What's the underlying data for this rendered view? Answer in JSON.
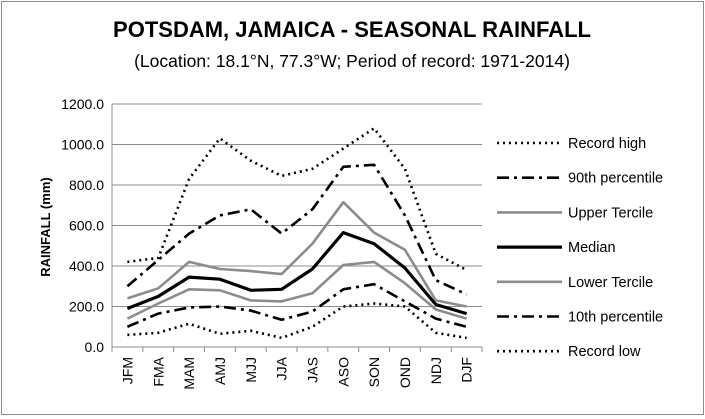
{
  "chart_data": {
    "type": "line",
    "title": "POTSDAM, JAMAICA - SEASONAL RAINFALL",
    "subtitle": "(Location: 18.1°N, 77.3°W; Period of record: 1971-2014)",
    "ylabel": "RAINFALL (mm)",
    "xlabel": "",
    "ylim": [
      0,
      1200
    ],
    "yticks": [
      "0.0",
      "200.0",
      "400.0",
      "600.0",
      "800.0",
      "1000.0",
      "1200.0"
    ],
    "categories": [
      "JFM",
      "FMA",
      "MAM",
      "AMJ",
      "MJJ",
      "JJA",
      "JAS",
      "ASO",
      "SON",
      "OND",
      "NDJ",
      "DJF"
    ],
    "grid": true,
    "legend_position": "right",
    "series": [
      {
        "name": "Record high",
        "color": "#000000",
        "dash": "dotted",
        "width": 2.6,
        "values": [
          420,
          440,
          830,
          1030,
          920,
          845,
          880,
          980,
          1080,
          880,
          460,
          380
        ]
      },
      {
        "name": "90th percentile",
        "color": "#000000",
        "dash": "dashdot",
        "width": 2.6,
        "values": [
          300,
          430,
          560,
          650,
          680,
          560,
          680,
          890,
          900,
          650,
          330,
          260
        ]
      },
      {
        "name": "Upper Tercile",
        "color": "#8c8c8c",
        "dash": "solid",
        "width": 2.6,
        "values": [
          240,
          290,
          420,
          385,
          375,
          360,
          510,
          715,
          565,
          480,
          230,
          200
        ]
      },
      {
        "name": "Median",
        "color": "#000000",
        "dash": "solid",
        "width": 3.2,
        "values": [
          190,
          250,
          345,
          335,
          280,
          285,
          385,
          565,
          510,
          390,
          210,
          165
        ]
      },
      {
        "name": "Lower Tercile",
        "color": "#8c8c8c",
        "dash": "solid",
        "width": 2.6,
        "values": [
          140,
          215,
          285,
          280,
          230,
          225,
          265,
          405,
          420,
          315,
          185,
          140
        ]
      },
      {
        "name": "10th percentile",
        "color": "#000000",
        "dash": "dashdot",
        "width": 2.6,
        "values": [
          100,
          165,
          195,
          200,
          180,
          135,
          175,
          285,
          310,
          225,
          140,
          100
        ]
      },
      {
        "name": "Record low",
        "color": "#000000",
        "dash": "dotted",
        "width": 2.6,
        "values": [
          60,
          70,
          115,
          65,
          80,
          45,
          100,
          200,
          215,
          200,
          70,
          45
        ]
      }
    ]
  }
}
